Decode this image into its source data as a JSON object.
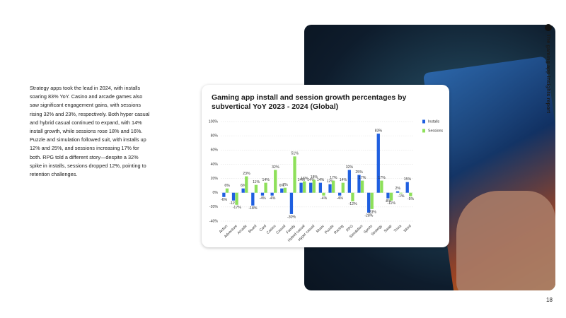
{
  "report_title": "The gaming app insights report",
  "page_number": "18",
  "body_text": "Strategy apps took the lead in 2024, with installs soaring 83% YoY. Casino and arcade games also saw significant engagement gains, with sessions rising 32% and 23%, respectively. Both hyper casual and hybrid casual continued to expand, with 14% install growth, while sessions rose 18% and 16%. Puzzle and simulation followed suit, with installs up 12% and 25%, and sessions increasing 17% for both. RPG told a different story—despite a 32% spike in installs, sessions dropped 12%, pointing to retention challenges.",
  "chart_data": {
    "type": "bar",
    "title": "Gaming app install and session growth percentages by subvertical YoY 2023 - 2024 (Global)",
    "categories": [
      "Action",
      "Adventure",
      "Arcade",
      "Board",
      "Card",
      "Casino",
      "Casual",
      "Family",
      "Hybrid casual",
      "Hyper casual",
      "Music",
      "Puzzle",
      "Racing",
      "RPG",
      "Simulation",
      "Sports",
      "Strategy",
      "Swap",
      "Trivia",
      "Word"
    ],
    "series": [
      {
        "name": "Installs",
        "color": "#1f5fe0",
        "values": [
          -6,
          -11,
          6,
          -18,
          -4,
          -4,
          6,
          -30,
          14,
          14,
          14,
          12,
          -4,
          32,
          25,
          -28,
          83,
          -8,
          2,
          15
        ],
        "value_labels": [
          "-6%",
          "-11%",
          "6%",
          "-18%",
          "-4%",
          "-4%",
          "6%",
          "-30%",
          "14%",
          "14%",
          "14%",
          "12%",
          "-4%",
          "32%",
          "25%",
          "-28%",
          "83%",
          "-8%",
          "2%",
          "15%"
        ]
      },
      {
        "name": "Sessions",
        "color": "#8ee05a",
        "values": [
          6,
          -17,
          23,
          11,
          14,
          32,
          7,
          51,
          16,
          18,
          -4,
          17,
          14,
          -12,
          17,
          -23,
          17,
          -11,
          -1,
          -5
        ],
        "value_labels": [
          "6%",
          "-17%",
          "23%",
          "11%",
          "14%",
          "32%",
          "7%",
          "51%",
          "16%",
          "18%",
          "-4%",
          "17%",
          "14%",
          "-12%",
          "17%",
          "-23%",
          "17%",
          "-11%",
          "-1%",
          "-5%"
        ]
      }
    ],
    "ylim": [
      -40,
      100
    ],
    "yticks": [
      {
        "value": -40,
        "label": "-40%"
      },
      {
        "value": -20,
        "label": "-20%"
      },
      {
        "value": 0,
        "label": "0%"
      },
      {
        "value": 20,
        "label": "20%"
      },
      {
        "value": 40,
        "label": "40%"
      },
      {
        "value": 60,
        "label": "60%"
      },
      {
        "value": 80,
        "label": "80%"
      },
      {
        "value": 100,
        "label": "100%"
      }
    ],
    "grid": true,
    "legend": "right"
  }
}
